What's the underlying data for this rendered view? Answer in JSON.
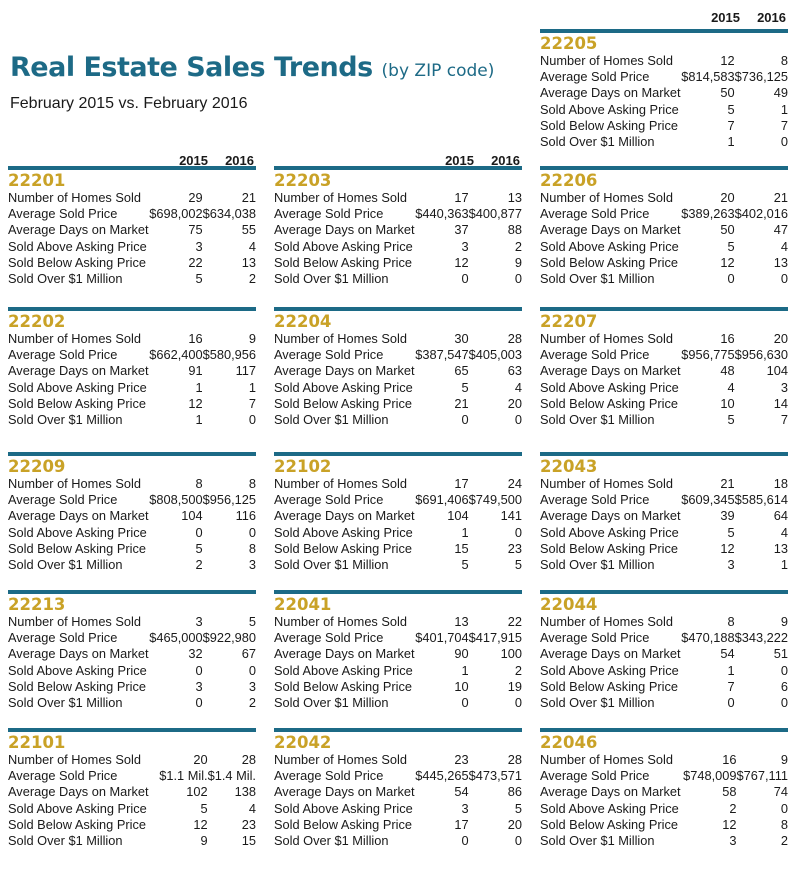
{
  "header": {
    "title_main": "Real Estate Sales Trends ",
    "title_sub": "(by ZIP code)",
    "subtitle": "February 2015 vs. February 2016",
    "year_2015": "2015",
    "year_2016": "2016"
  },
  "colors": {
    "title": "#1d6a86",
    "bar": "#1c6a86",
    "zip": "#c9a227"
  },
  "blocks": [
    {
      "zip": "22205",
      "rows": [
        {
          "label": "Number of Homes Sold",
          "v2015": "12",
          "v2016": "8"
        },
        {
          "label": "Average Sold Price",
          "v2015": "$814,583",
          "v2016": "$736,125"
        },
        {
          "label": "Average Days on Market",
          "v2015": "50",
          "v2016": "49"
        },
        {
          "label": "Sold Above Asking Price",
          "v2015": "5",
          "v2016": "1"
        },
        {
          "label": "Sold Below Asking Price",
          "v2015": "7",
          "v2016": "7"
        },
        {
          "label": "Sold Over $1 Million",
          "v2015": "1",
          "v2016": "0"
        }
      ]
    },
    {
      "zip": "22201",
      "rows": [
        {
          "label": "Number of Homes Sold",
          "v2015": "29",
          "v2016": "21"
        },
        {
          "label": "Average Sold Price",
          "v2015": "$698,002",
          "v2016": "$634,038"
        },
        {
          "label": "Average Days on Market",
          "v2015": "75",
          "v2016": "55"
        },
        {
          "label": "Sold Above Asking Price",
          "v2015": "3",
          "v2016": "4"
        },
        {
          "label": "Sold Below Asking Price",
          "v2015": "22",
          "v2016": "13"
        },
        {
          "label": "Sold Over $1 Million",
          "v2015": "5",
          "v2016": "2"
        }
      ]
    },
    {
      "zip": "22203",
      "rows": [
        {
          "label": "Number of Homes Sold",
          "v2015": "17",
          "v2016": "13"
        },
        {
          "label": "Average Sold Price",
          "v2015": "$440,363",
          "v2016": "$400,877"
        },
        {
          "label": "Average Days on Market",
          "v2015": "37",
          "v2016": "88"
        },
        {
          "label": "Sold Above Asking Price",
          "v2015": "3",
          "v2016": "2"
        },
        {
          "label": "Sold Below Asking Price",
          "v2015": "12",
          "v2016": "9"
        },
        {
          "label": "Sold Over $1 Million",
          "v2015": "0",
          "v2016": "0"
        }
      ]
    },
    {
      "zip": "22206",
      "rows": [
        {
          "label": "Number of Homes Sold",
          "v2015": "20",
          "v2016": "21"
        },
        {
          "label": "Average Sold Price",
          "v2015": "$389,263",
          "v2016": "$402,016"
        },
        {
          "label": "Average Days on Market",
          "v2015": "50",
          "v2016": "47"
        },
        {
          "label": "Sold Above Asking Price",
          "v2015": "5",
          "v2016": "4"
        },
        {
          "label": "Sold Below Asking Price",
          "v2015": "12",
          "v2016": "13"
        },
        {
          "label": "Sold Over $1 Million",
          "v2015": "0",
          "v2016": "0"
        }
      ]
    },
    {
      "zip": "22202",
      "rows": [
        {
          "label": "Number of Homes Sold",
          "v2015": "16",
          "v2016": "9"
        },
        {
          "label": "Average Sold Price",
          "v2015": "$662,400",
          "v2016": "$580,956"
        },
        {
          "label": "Average Days on Market",
          "v2015": "91",
          "v2016": "117"
        },
        {
          "label": "Sold Above Asking Price",
          "v2015": "1",
          "v2016": "1"
        },
        {
          "label": "Sold Below Asking Price",
          "v2015": "12",
          "v2016": "7"
        },
        {
          "label": "Sold Over $1 Million",
          "v2015": "1",
          "v2016": "0"
        }
      ]
    },
    {
      "zip": "22204",
      "rows": [
        {
          "label": "Number of Homes Sold",
          "v2015": "30",
          "v2016": "28"
        },
        {
          "label": "Average Sold Price",
          "v2015": "$387,547",
          "v2016": "$405,003"
        },
        {
          "label": "Average Days on Market",
          "v2015": "65",
          "v2016": "63"
        },
        {
          "label": "Sold Above Asking Price",
          "v2015": "5",
          "v2016": "4"
        },
        {
          "label": "Sold Below Asking Price",
          "v2015": "21",
          "v2016": "20"
        },
        {
          "label": "Sold Over $1 Million",
          "v2015": "0",
          "v2016": "0"
        }
      ]
    },
    {
      "zip": "22207",
      "rows": [
        {
          "label": "Number of Homes Sold",
          "v2015": "16",
          "v2016": "20"
        },
        {
          "label": "Average Sold Price",
          "v2015": "$956,775",
          "v2016": "$956,630"
        },
        {
          "label": "Average Days on Market",
          "v2015": "48",
          "v2016": "104"
        },
        {
          "label": "Sold Above Asking Price",
          "v2015": "4",
          "v2016": "3"
        },
        {
          "label": "Sold Below Asking Price",
          "v2015": "10",
          "v2016": "14"
        },
        {
          "label": "Sold Over $1 Million",
          "v2015": "5",
          "v2016": "7"
        }
      ]
    },
    {
      "zip": "22209",
      "rows": [
        {
          "label": "Number of Homes Sold",
          "v2015": "8",
          "v2016": "8"
        },
        {
          "label": "Average Sold Price",
          "v2015": "$808,500",
          "v2016": "$956,125"
        },
        {
          "label": "Average Days on Market",
          "v2015": "104",
          "v2016": "116"
        },
        {
          "label": "Sold Above Asking Price",
          "v2015": "0",
          "v2016": "0"
        },
        {
          "label": "Sold Below Asking Price",
          "v2015": "5",
          "v2016": "8"
        },
        {
          "label": "Sold Over $1 Million",
          "v2015": "2",
          "v2016": "3"
        }
      ]
    },
    {
      "zip": "22102",
      "rows": [
        {
          "label": "Number of Homes Sold",
          "v2015": "17",
          "v2016": "24"
        },
        {
          "label": "Average Sold Price",
          "v2015": "$691,406",
          "v2016": "$749,500"
        },
        {
          "label": "Average Days on Market",
          "v2015": "104",
          "v2016": "141"
        },
        {
          "label": "Sold Above Asking Price",
          "v2015": "1",
          "v2016": "0"
        },
        {
          "label": "Sold Below Asking Price",
          "v2015": "15",
          "v2016": "23"
        },
        {
          "label": "Sold Over $1 Million",
          "v2015": "5",
          "v2016": "5"
        }
      ]
    },
    {
      "zip": "22043",
      "rows": [
        {
          "label": "Number of Homes Sold",
          "v2015": "21",
          "v2016": "18"
        },
        {
          "label": "Average Sold Price",
          "v2015": "$609,345",
          "v2016": "$585,614"
        },
        {
          "label": "Average Days on Market",
          "v2015": "39",
          "v2016": "64"
        },
        {
          "label": "Sold Above Asking Price",
          "v2015": "5",
          "v2016": "4"
        },
        {
          "label": "Sold Below Asking Price",
          "v2015": "12",
          "v2016": "13"
        },
        {
          "label": "Sold Over $1 Million",
          "v2015": "3",
          "v2016": "1"
        }
      ]
    },
    {
      "zip": "22213",
      "rows": [
        {
          "label": "Number of Homes Sold",
          "v2015": "3",
          "v2016": "5"
        },
        {
          "label": "Average Sold Price",
          "v2015": "$465,000",
          "v2016": "$922,980"
        },
        {
          "label": "Average Days on Market",
          "v2015": "32",
          "v2016": "67"
        },
        {
          "label": "Sold Above Asking Price",
          "v2015": "0",
          "v2016": "0"
        },
        {
          "label": "Sold Below Asking Price",
          "v2015": "3",
          "v2016": "3"
        },
        {
          "label": "Sold Over $1 Million",
          "v2015": "0",
          "v2016": "2"
        }
      ]
    },
    {
      "zip": "22041",
      "rows": [
        {
          "label": "Number of Homes Sold",
          "v2015": "13",
          "v2016": "22"
        },
        {
          "label": "Average Sold Price",
          "v2015": "$401,704",
          "v2016": "$417,915"
        },
        {
          "label": "Average Days on Market",
          "v2015": "90",
          "v2016": "100"
        },
        {
          "label": "Sold Above Asking Price",
          "v2015": "1",
          "v2016": "2"
        },
        {
          "label": "Sold Below Asking Price",
          "v2015": "10",
          "v2016": "19"
        },
        {
          "label": "Sold Over $1 Million",
          "v2015": "0",
          "v2016": "0"
        }
      ]
    },
    {
      "zip": "22044",
      "rows": [
        {
          "label": "Number of Homes Sold",
          "v2015": "8",
          "v2016": "9"
        },
        {
          "label": "Average Sold Price",
          "v2015": "$470,188",
          "v2016": "$343,222"
        },
        {
          "label": "Average Days on Market",
          "v2015": "54",
          "v2016": "51"
        },
        {
          "label": "Sold Above Asking Price",
          "v2015": "1",
          "v2016": "0"
        },
        {
          "label": "Sold Below Asking Price",
          "v2015": "7",
          "v2016": "6"
        },
        {
          "label": "Sold Over $1 Million",
          "v2015": "0",
          "v2016": "0"
        }
      ]
    },
    {
      "zip": "22101",
      "rows": [
        {
          "label": "Number of Homes Sold",
          "v2015": "20",
          "v2016": "28"
        },
        {
          "label": "Average Sold Price",
          "v2015": "$1.1 Mil.",
          "v2016": "$1.4 Mil."
        },
        {
          "label": "Average Days on Market",
          "v2015": "102",
          "v2016": "138"
        },
        {
          "label": "Sold Above Asking Price",
          "v2015": "5",
          "v2016": "4"
        },
        {
          "label": "Sold Below Asking Price",
          "v2015": "12",
          "v2016": "23"
        },
        {
          "label": "Sold Over $1 Million",
          "v2015": "9",
          "v2016": "15"
        }
      ]
    },
    {
      "zip": "22042",
      "rows": [
        {
          "label": "Number of Homes Sold",
          "v2015": "23",
          "v2016": "28"
        },
        {
          "label": "Average Sold Price",
          "v2015": "$445,265",
          "v2016": "$473,571"
        },
        {
          "label": "Average Days on Market",
          "v2015": "54",
          "v2016": "86"
        },
        {
          "label": "Sold Above Asking Price",
          "v2015": "3",
          "v2016": "5"
        },
        {
          "label": "Sold Below Asking Price",
          "v2015": "17",
          "v2016": "20"
        },
        {
          "label": "Sold Over $1 Million",
          "v2015": "0",
          "v2016": "0"
        }
      ]
    },
    {
      "zip": "22046",
      "rows": [
        {
          "label": "Number of Homes Sold",
          "v2015": "16",
          "v2016": "9"
        },
        {
          "label": "Average Sold Price",
          "v2015": "$748,009",
          "v2016": "$767,111"
        },
        {
          "label": "Average Days on Market",
          "v2015": "58",
          "v2016": "74"
        },
        {
          "label": "Sold Above Asking Price",
          "v2015": "2",
          "v2016": "0"
        },
        {
          "label": "Sold Below Asking Price",
          "v2015": "12",
          "v2016": "8"
        },
        {
          "label": "Sold Over $1 Million",
          "v2015": "3",
          "v2016": "2"
        }
      ]
    }
  ]
}
